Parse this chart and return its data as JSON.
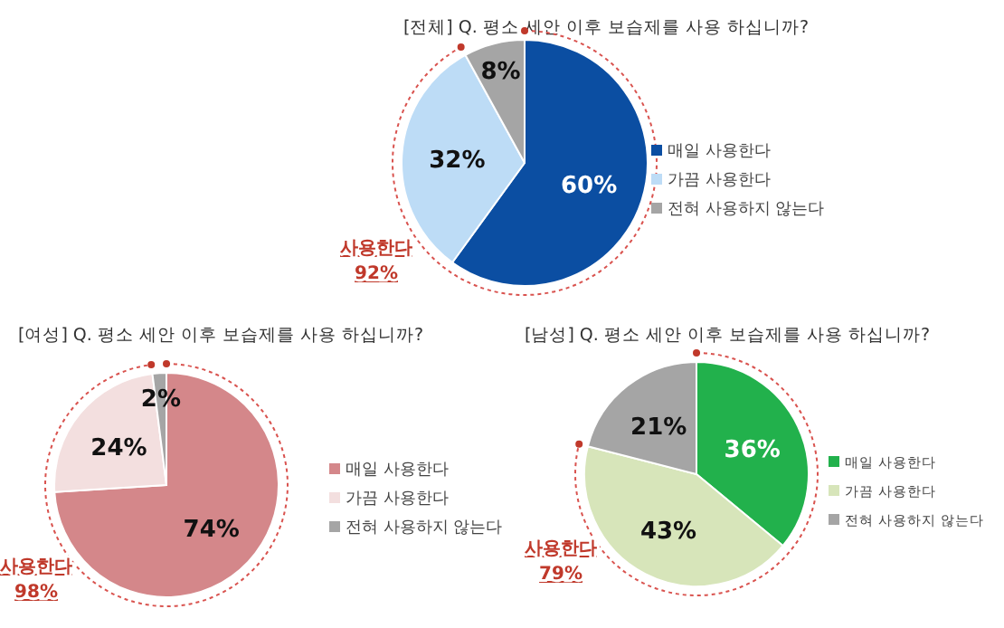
{
  "chart_data": [
    {
      "type": "pie",
      "title": "[전체] Q. 평소 세안 이후 보습제를 사용 하십니까?",
      "categories": [
        "매일 사용한다",
        "가끔 사용한다",
        "전혀 사용하지 않는다"
      ],
      "values": [
        60,
        32,
        8
      ],
      "value_labels": [
        "60%",
        "32%",
        "8%"
      ],
      "colors": [
        "#0b4ea2",
        "#bddcf6",
        "#a5a5a5"
      ],
      "legend": "right",
      "annotations": [
        "사용한다",
        "92%"
      ]
    },
    {
      "type": "pie",
      "title": "[여성] Q. 평소 세안 이후 보습제를 사용 하십니까?",
      "categories": [
        "매일 사용한다",
        "가끔 사용한다",
        "전혀 사용하지 않는다"
      ],
      "values": [
        74,
        24,
        2
      ],
      "value_labels": [
        "74%",
        "24%",
        "2%"
      ],
      "colors": [
        "#d4878a",
        "#f3dfdf",
        "#a5a5a5"
      ],
      "legend": "right",
      "annotations": [
        "사용한다",
        "98%"
      ]
    },
    {
      "type": "pie",
      "title": "[남성] Q. 평소 세안 이후 보습제를 사용 하십니까?",
      "categories": [
        "매일 사용한다",
        "가끔 사용한다",
        "전혀 사용하지 않는다"
      ],
      "values": [
        36,
        43,
        21
      ],
      "value_labels": [
        "36%",
        "43%",
        "21%"
      ],
      "colors": [
        "#22b14c",
        "#d7e5ba",
        "#a5a5a5"
      ],
      "legend": "right",
      "annotations": [
        "사용한다",
        "79%"
      ]
    }
  ]
}
